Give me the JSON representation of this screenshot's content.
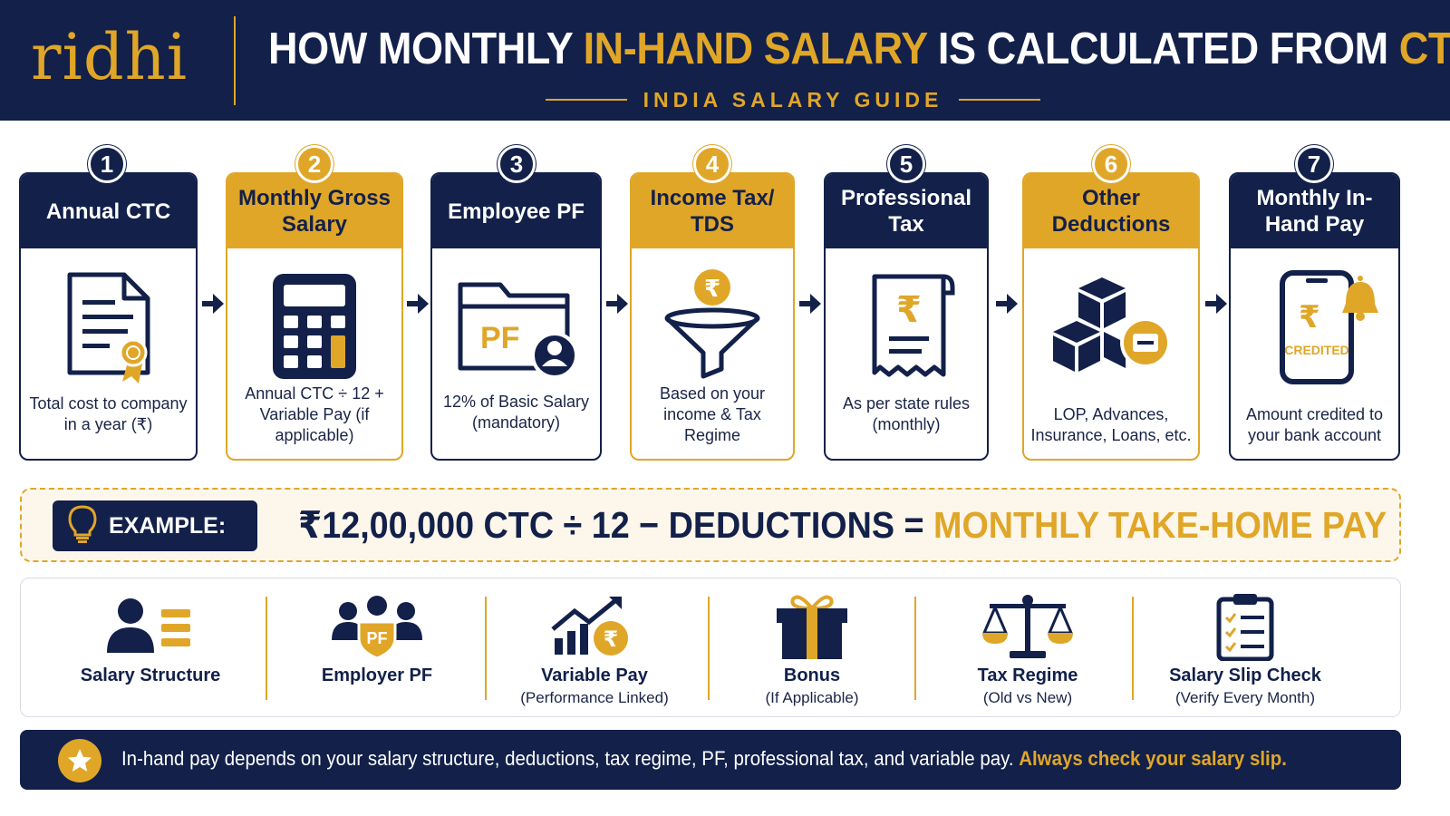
{
  "header": {
    "logo": "ridhi",
    "title_part1": "HOW MONTHLY ",
    "title_highlight": "IN-HAND SALARY",
    "title_part2": " IS CALCULATED FROM ",
    "title_highlight2": "CTC",
    "subtitle": "INDIA SALARY GUIDE"
  },
  "steps": [
    {
      "number": "1",
      "title": "Annual CTC",
      "description": "Total cost to company in a year (₹)",
      "icon": "certificate-document-icon",
      "style": "navy"
    },
    {
      "number": "2",
      "title": "Monthly Gross Salary",
      "description": "Annual CTC ÷ 12 + Variable Pay (if applicable)",
      "icon": "calculator-icon",
      "style": "gold"
    },
    {
      "number": "3",
      "title": "Employee PF",
      "description": "12% of Basic Salary (mandatory)",
      "icon": "pf-folder-icon",
      "icon_text": "PF",
      "style": "navy"
    },
    {
      "number": "4",
      "title": "Income Tax/ TDS",
      "description": "Based on your income & Tax Regime",
      "icon": "rupee-funnel-icon",
      "style": "gold"
    },
    {
      "number": "5",
      "title": "Professional Tax",
      "description": "As per state rules (monthly)",
      "icon": "rupee-receipt-icon",
      "style": "navy"
    },
    {
      "number": "6",
      "title": "Other Deductions",
      "description": "LOP, Advances, Insurance, Loans, etc.",
      "icon": "boxes-minus-icon",
      "style": "gold"
    },
    {
      "number": "7",
      "title": "Monthly In-Hand Pay",
      "description": "Amount credited to your bank account",
      "icon": "phone-credited-icon",
      "icon_text": "CREDITED",
      "style": "navy"
    }
  ],
  "example": {
    "label": "EXAMPLE:",
    "formula_main": "₹12,00,000 CTC ÷ 12 − DEDUCTIONS = ",
    "formula_result": "MONTHLY TAKE-HOME PAY"
  },
  "features": [
    {
      "label": "Salary Structure",
      "sub": "",
      "icon": "salary-structure-icon"
    },
    {
      "label": "Employer PF",
      "sub": "",
      "icon": "employer-pf-icon",
      "icon_text": "PF"
    },
    {
      "label": "Variable Pay",
      "sub": "(Performance Linked)",
      "icon": "growth-chart-icon"
    },
    {
      "label": "Bonus",
      "sub": "(If Applicable)",
      "icon": "gift-icon"
    },
    {
      "label": "Tax Regime",
      "sub": "(Old vs New)",
      "icon": "scales-icon"
    },
    {
      "label": "Salary Slip Check",
      "sub": "(Verify Every Month)",
      "icon": "clipboard-checklist-icon"
    }
  ],
  "footer": {
    "text": "In-hand pay depends on your salary structure, deductions, tax regime, PF, professional tax, and variable pay. ",
    "highlight": "Always check your salary slip."
  },
  "colors": {
    "navy": "#12204a",
    "gold": "#e0a628",
    "cream": "#fdf6ea"
  }
}
